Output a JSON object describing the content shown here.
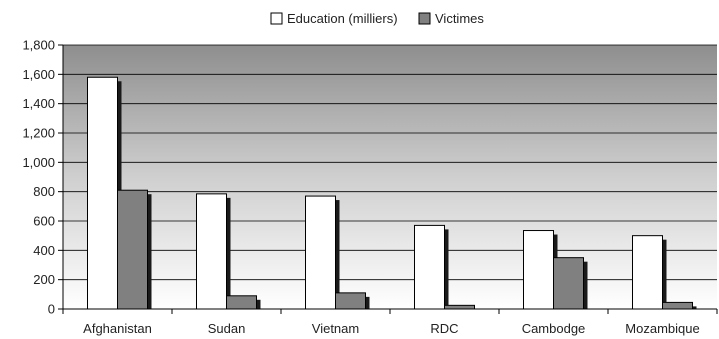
{
  "chart_data": {
    "type": "bar",
    "title": "",
    "xlabel": "",
    "ylabel": "",
    "categories": [
      "Afghanistan",
      "Sudan",
      "Vietnam",
      "RDC",
      "Cambodge",
      "Mozambique"
    ],
    "series": [
      {
        "name": "Education (milliers)",
        "values": [
          1580,
          785,
          770,
          570,
          535,
          500
        ],
        "color": "#ffffff"
      },
      {
        "name": "Victimes",
        "values": [
          810,
          90,
          110,
          25,
          350,
          45
        ],
        "color": "#808080"
      }
    ],
    "ylim": [
      0,
      1800
    ],
    "yticks": [
      "0",
      "200",
      "400",
      "600",
      "800",
      "1,000",
      "1,200",
      "1,400",
      "1,600",
      "1,800"
    ],
    "grid": true,
    "legend_position": "top-center"
  }
}
